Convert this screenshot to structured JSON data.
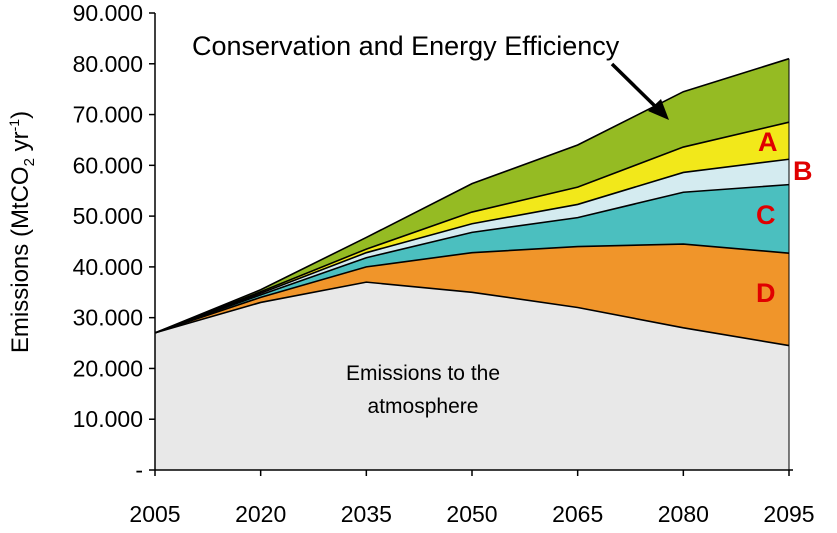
{
  "chart_data": {
    "type": "area",
    "stacked": true,
    "x": [
      "2005",
      "2020",
      "2035",
      "2050",
      "2065",
      "2080",
      "2095"
    ],
    "ylabel": "Emissions (MtCO2 yr-1)",
    "ylabel_parts": {
      "pre": "Emissions (MtCO",
      "sub": "2",
      "mid": " yr",
      "sup": "-1",
      "post": ")"
    },
    "ylim": [
      0,
      90000
    ],
    "ytick_values": [
      0,
      10000,
      20000,
      30000,
      40000,
      50000,
      60000,
      70000,
      80000,
      90000
    ],
    "ytick_labels": [
      "-",
      "10.000",
      "20.000",
      "30.000",
      "40.000",
      "50.000",
      "60.000",
      "70.000",
      "80.000",
      "90.000"
    ],
    "grid": false,
    "series": [
      {
        "name": "Emissions to the atmosphere",
        "color": "#e8e8e8",
        "values": [
          27000,
          33000,
          37000,
          35000,
          32000,
          28000,
          24500
        ]
      },
      {
        "name": "D",
        "color": "#f0952a",
        "values": [
          0,
          1000,
          3000,
          7800,
          12000,
          16500,
          18200
        ]
      },
      {
        "name": "C",
        "color": "#4bbfbf",
        "values": [
          0,
          500,
          1800,
          4000,
          5700,
          10200,
          13500
        ]
      },
      {
        "name": "B",
        "color": "#d4ebf0",
        "values": [
          0,
          300,
          1000,
          1700,
          2600,
          3900,
          5000
        ]
      },
      {
        "name": "A",
        "color": "#f2e81a",
        "values": [
          0,
          300,
          700,
          2300,
          3400,
          5000,
          7300
        ]
      },
      {
        "name": "Conservation and Energy Efficiency",
        "color": "#95bb23",
        "values": [
          0,
          400,
          2300,
          5600,
          8300,
          10900,
          12500
        ]
      }
    ],
    "annotations": {
      "conservation": "Conservation and Energy Efficiency",
      "atmosphere_line1": "Emissions to the",
      "atmosphere_line2": "atmosphere",
      "A": "A",
      "B": "B",
      "C": "C",
      "D": "D"
    },
    "colors": {
      "letters": "#e00000",
      "axis": "#000000"
    }
  }
}
